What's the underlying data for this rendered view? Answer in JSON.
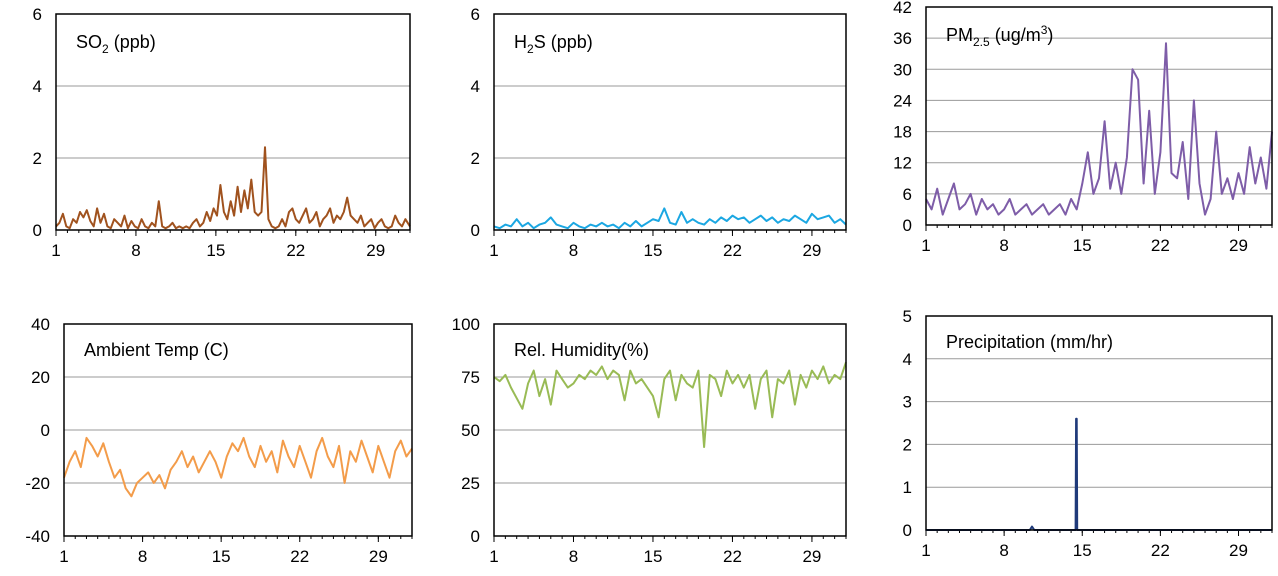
{
  "chart_data": [
    {
      "type": "line",
      "title_parts": {
        "main": "SO",
        "sub": "2",
        "rest": " (ppb)"
      },
      "ylim": [
        0,
        6
      ],
      "yticks": [
        0,
        2,
        4,
        6
      ],
      "xlim": [
        1,
        32
      ],
      "xticks": [
        1,
        8,
        15,
        22,
        29
      ],
      "grid": true,
      "color": "#A0521E",
      "series": [
        {
          "x": [
            1,
            1.3,
            1.6,
            1.9,
            2.2,
            2.5,
            2.8,
            3.1,
            3.4,
            3.7,
            4.0,
            4.3,
            4.6,
            4.9,
            5.2,
            5.5,
            5.8,
            6.1,
            6.4,
            6.7,
            7.0,
            7.3,
            7.6,
            7.9,
            8.2,
            8.5,
            8.8,
            9.1,
            9.4,
            9.7,
            10.0,
            10.3,
            10.6,
            10.9,
            11.2,
            11.5,
            11.8,
            12.1,
            12.4,
            12.7,
            13.0,
            13.3,
            13.6,
            13.9,
            14.2,
            14.5,
            14.8,
            15.1,
            15.4,
            15.7,
            16.0,
            16.3,
            16.6,
            16.9,
            17.2,
            17.5,
            17.8,
            18.1,
            18.4,
            18.7,
            19.0,
            19.3,
            19.6,
            19.9,
            20.2,
            20.5,
            20.8,
            21.1,
            21.4,
            21.7,
            22.0,
            22.3,
            22.6,
            22.9,
            23.2,
            23.5,
            23.8,
            24.1,
            24.4,
            24.7,
            25.0,
            25.3,
            25.6,
            25.9,
            26.2,
            26.5,
            26.8,
            27.1,
            27.4,
            27.7,
            28.0,
            28.3,
            28.6,
            28.9,
            29.2,
            29.5,
            29.8,
            30.1,
            30.4,
            30.7,
            31.0,
            31.3,
            31.6,
            32.0
          ],
          "y": [
            0.1,
            0.2,
            0.45,
            0.1,
            0.05,
            0.3,
            0.2,
            0.5,
            0.35,
            0.55,
            0.25,
            0.1,
            0.6,
            0.2,
            0.45,
            0.1,
            0.05,
            0.3,
            0.2,
            0.1,
            0.4,
            0.05,
            0.25,
            0.1,
            0.05,
            0.3,
            0.1,
            0.05,
            0.2,
            0.1,
            0.8,
            0.1,
            0.05,
            0.1,
            0.2,
            0.05,
            0.1,
            0.05,
            0.1,
            0.05,
            0.2,
            0.3,
            0.1,
            0.2,
            0.5,
            0.25,
            0.6,
            0.4,
            1.25,
            0.5,
            0.3,
            0.8,
            0.4,
            1.2,
            0.5,
            1.1,
            0.6,
            1.4,
            0.5,
            0.4,
            0.5,
            2.3,
            0.3,
            0.1,
            0.05,
            0.1,
            0.3,
            0.1,
            0.5,
            0.6,
            0.3,
            0.2,
            0.4,
            0.6,
            0.2,
            0.3,
            0.5,
            0.1,
            0.3,
            0.4,
            0.6,
            0.2,
            0.4,
            0.3,
            0.5,
            0.9,
            0.4,
            0.3,
            0.2,
            0.4,
            0.1,
            0.2,
            0.3,
            0.05,
            0.2,
            0.3,
            0.1,
            0.05,
            0.1,
            0.4,
            0.2,
            0.1,
            0.3,
            0.1
          ]
        }
      ]
    },
    {
      "type": "line",
      "title_parts": {
        "main": "H",
        "sub": "2",
        "rest": "S  (ppb)"
      },
      "ylim": [
        0,
        6
      ],
      "yticks": [
        0,
        2,
        4,
        6
      ],
      "xlim": [
        1,
        32
      ],
      "xticks": [
        1,
        8,
        15,
        22,
        29
      ],
      "grid": true,
      "color": "#1BA7E2",
      "series": [
        {
          "x": [
            1,
            1.5,
            2,
            2.5,
            3,
            3.5,
            4,
            4.5,
            5,
            5.5,
            6,
            6.5,
            7,
            7.5,
            8,
            8.5,
            9,
            9.5,
            10,
            10.5,
            11,
            11.5,
            12,
            12.5,
            13,
            13.5,
            14,
            14.5,
            15,
            15.5,
            16,
            16.5,
            17,
            17.5,
            18,
            18.5,
            19,
            19.5,
            20,
            20.5,
            21,
            21.5,
            22,
            22.5,
            23,
            23.5,
            24,
            24.5,
            25,
            25.5,
            26,
            26.5,
            27,
            27.5,
            28,
            28.5,
            29,
            29.5,
            30,
            30.5,
            31,
            31.5,
            32
          ],
          "y": [
            0.1,
            0.05,
            0.15,
            0.1,
            0.3,
            0.1,
            0.2,
            0.05,
            0.15,
            0.2,
            0.35,
            0.15,
            0.1,
            0.05,
            0.2,
            0.1,
            0.05,
            0.15,
            0.1,
            0.2,
            0.1,
            0.15,
            0.05,
            0.2,
            0.1,
            0.25,
            0.1,
            0.2,
            0.3,
            0.25,
            0.6,
            0.2,
            0.15,
            0.5,
            0.2,
            0.3,
            0.2,
            0.15,
            0.3,
            0.2,
            0.35,
            0.25,
            0.4,
            0.3,
            0.35,
            0.2,
            0.3,
            0.4,
            0.25,
            0.35,
            0.2,
            0.3,
            0.25,
            0.4,
            0.3,
            0.2,
            0.45,
            0.3,
            0.35,
            0.4,
            0.2,
            0.3,
            0.15
          ]
        }
      ]
    },
    {
      "type": "line",
      "title_parts": {
        "main": "PM",
        "sub": "2.5",
        "rest": " (ug/m",
        "sup": "3",
        "end": ")"
      },
      "ylim": [
        0,
        42
      ],
      "yticks": [
        0,
        6,
        12,
        18,
        24,
        30,
        36,
        42
      ],
      "xlim": [
        1,
        32
      ],
      "xticks": [
        1,
        8,
        15,
        22,
        29
      ],
      "grid": true,
      "color": "#7E5DA8",
      "series": [
        {
          "x": [
            1,
            1.5,
            2,
            2.5,
            3,
            3.5,
            4,
            4.5,
            5,
            5.5,
            6,
            6.5,
            7,
            7.5,
            8,
            8.5,
            9,
            9.5,
            10,
            10.5,
            11,
            11.5,
            12,
            12.5,
            13,
            13.5,
            14,
            14.5,
            15,
            15.5,
            16,
            16.5,
            17,
            17.5,
            18,
            18.5,
            19,
            19.5,
            20,
            20.5,
            21,
            21.5,
            22,
            22.5,
            23,
            23.5,
            24,
            24.5,
            25,
            25.5,
            26,
            26.5,
            27,
            27.5,
            28,
            28.5,
            29,
            29.5,
            30,
            30.5,
            31,
            31.5,
            32
          ],
          "y": [
            5,
            3,
            7,
            2,
            5,
            8,
            3,
            4,
            6,
            2,
            5,
            3,
            4,
            2,
            3,
            5,
            2,
            3,
            4,
            2,
            3,
            4,
            2,
            3,
            4,
            2,
            5,
            3,
            8,
            14,
            6,
            9,
            20,
            7,
            12,
            6,
            13,
            30,
            28,
            8,
            22,
            6,
            14,
            35,
            10,
            9,
            16,
            5,
            24,
            8,
            2,
            5,
            18,
            6,
            9,
            5,
            10,
            6,
            15,
            8,
            13,
            7,
            18
          ]
        }
      ]
    },
    {
      "type": "line",
      "title_parts": {
        "main": "Ambient Temp (C)"
      },
      "ylim": [
        -40,
        40
      ],
      "yticks": [
        -40,
        -20,
        0,
        20,
        40
      ],
      "xlim": [
        1,
        32
      ],
      "xticks": [
        1,
        8,
        15,
        22,
        29
      ],
      "grid": true,
      "color": "#F39C4A",
      "series": [
        {
          "x": [
            1,
            1.5,
            2,
            2.5,
            3,
            3.5,
            4,
            4.5,
            5,
            5.5,
            6,
            6.5,
            7,
            7.5,
            8,
            8.5,
            9,
            9.5,
            10,
            10.5,
            11,
            11.5,
            12,
            12.5,
            13,
            13.5,
            14,
            14.5,
            15,
            15.5,
            16,
            16.5,
            17,
            17.5,
            18,
            18.5,
            19,
            19.5,
            20,
            20.5,
            21,
            21.5,
            22,
            22.5,
            23,
            23.5,
            24,
            24.5,
            25,
            25.5,
            26,
            26.5,
            27,
            27.5,
            28,
            28.5,
            29,
            29.5,
            30,
            30.5,
            31,
            31.5,
            32
          ],
          "y": [
            -18,
            -12,
            -8,
            -14,
            -3,
            -6,
            -10,
            -5,
            -12,
            -18,
            -15,
            -22,
            -25,
            -20,
            -18,
            -16,
            -20,
            -17,
            -22,
            -15,
            -12,
            -8,
            -14,
            -10,
            -16,
            -12,
            -8,
            -12,
            -18,
            -10,
            -5,
            -8,
            -3,
            -10,
            -14,
            -6,
            -12,
            -8,
            -16,
            -4,
            -10,
            -14,
            -6,
            -12,
            -18,
            -8,
            -3,
            -10,
            -14,
            -6,
            -20,
            -8,
            -12,
            -4,
            -10,
            -16,
            -6,
            -12,
            -18,
            -8,
            -4,
            -10,
            -7
          ]
        }
      ]
    },
    {
      "type": "line",
      "title_parts": {
        "main": "Rel. Humidity(%)"
      },
      "ylim": [
        0,
        100
      ],
      "yticks": [
        0,
        25,
        50,
        75,
        100
      ],
      "xlim": [
        1,
        32
      ],
      "xticks": [
        1,
        8,
        15,
        22,
        29
      ],
      "grid": true,
      "color": "#99BB55",
      "series": [
        {
          "x": [
            1,
            1.5,
            2,
            2.5,
            3,
            3.5,
            4,
            4.5,
            5,
            5.5,
            6,
            6.5,
            7,
            7.5,
            8,
            8.5,
            9,
            9.5,
            10,
            10.5,
            11,
            11.5,
            12,
            12.5,
            13,
            13.5,
            14,
            14.5,
            15,
            15.5,
            16,
            16.5,
            17,
            17.5,
            18,
            18.5,
            19,
            19.5,
            20,
            20.5,
            21,
            21.5,
            22,
            22.5,
            23,
            23.5,
            24,
            24.5,
            25,
            25.5,
            26,
            26.5,
            27,
            27.5,
            28,
            28.5,
            29,
            29.5,
            30,
            30.5,
            31,
            31.5,
            32
          ],
          "y": [
            75,
            73,
            76,
            70,
            65,
            60,
            72,
            78,
            66,
            74,
            62,
            78,
            74,
            70,
            72,
            76,
            74,
            78,
            76,
            80,
            74,
            78,
            76,
            64,
            78,
            72,
            74,
            70,
            66,
            56,
            74,
            78,
            64,
            76,
            72,
            70,
            78,
            42,
            76,
            74,
            66,
            78,
            72,
            76,
            70,
            76,
            60,
            74,
            78,
            56,
            74,
            72,
            78,
            62,
            76,
            70,
            78,
            74,
            80,
            72,
            76,
            74,
            82
          ]
        }
      ]
    },
    {
      "type": "line",
      "title_parts": {
        "main": "Precipitation (mm/hr)"
      },
      "ylim": [
        0,
        5
      ],
      "yticks": [
        0,
        1,
        2,
        3,
        4,
        5
      ],
      "xlim": [
        1,
        32
      ],
      "xticks": [
        1,
        8,
        15,
        22,
        29
      ],
      "grid": true,
      "color": "#1F3A7A",
      "series": [
        {
          "x": [
            1,
            3,
            5,
            7,
            9,
            10.3,
            10.5,
            10.7,
            12,
            14,
            14.4,
            14.45,
            14.5,
            14.55,
            16,
            18,
            20,
            22,
            24,
            26,
            28,
            30,
            32
          ],
          "y": [
            0,
            0,
            0,
            0,
            0,
            0,
            0.08,
            0,
            0,
            0,
            0,
            2.6,
            2.6,
            0,
            0,
            0,
            0,
            0,
            0,
            0,
            0,
            0,
            0
          ]
        }
      ]
    }
  ]
}
